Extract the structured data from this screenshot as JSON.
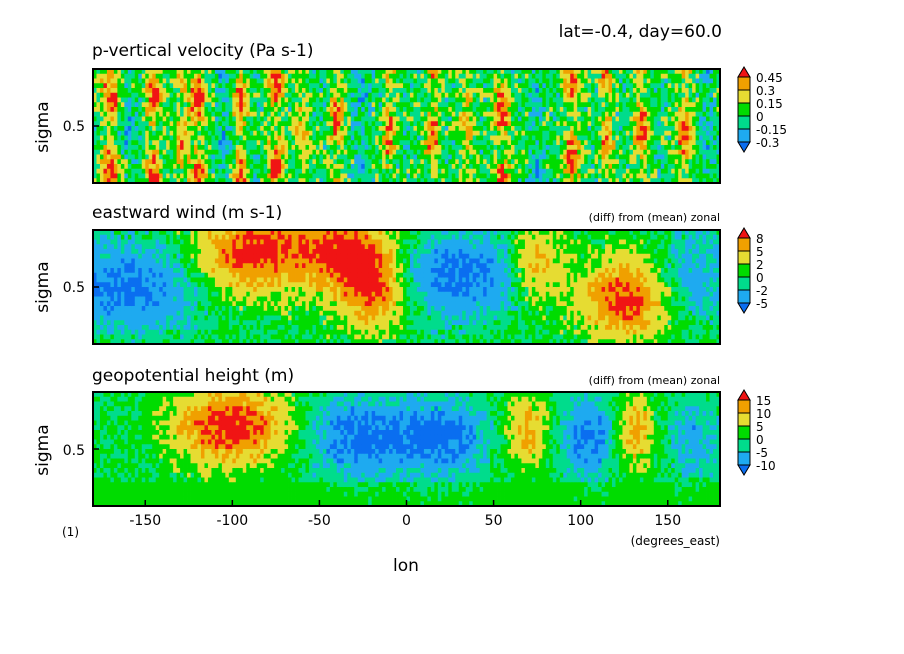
{
  "header": {
    "caption": "lat=-0.4, day=60.0",
    "figure_number": "(1)"
  },
  "x_axis": {
    "label": "lon",
    "units": "(degrees_east)",
    "ticks": [
      -150,
      -100,
      -50,
      0,
      50,
      100,
      150
    ],
    "tick_labels": [
      "-150",
      "-100",
      "-50",
      "0",
      "50",
      "100",
      "150"
    ],
    "range": [
      -180,
      180
    ]
  },
  "palette": {
    "dark_blue": "#0a6ef0",
    "light_blue": "#1eaaf0",
    "cyan_green": "#00dc8c",
    "green": "#00dc00",
    "yellow": "#e6dc32",
    "orange": "#f0a000",
    "red": "#f01414"
  },
  "chart_data": [
    {
      "type": "heatmap",
      "title": "p-vertical velocity (Pa s-1)",
      "subtitle": "",
      "xlabel": "lon",
      "ylabel": "sigma",
      "y_tick_labels": [
        "0.5"
      ],
      "y_ticks": [
        0.5
      ],
      "xlim": [
        -180,
        180
      ],
      "ylim": [
        1.0,
        0.0
      ],
      "colorbar": {
        "labels": [
          "-0.3",
          "-0.15",
          "0",
          "0.15",
          "0.3",
          "0.45"
        ],
        "levels": [
          -0.3,
          -0.15,
          0,
          0.15,
          0.3,
          0.45
        ],
        "colors": [
          "#0a6ef0",
          "#1eaaf0",
          "#00dc8c",
          "#00dc00",
          "#e6dc32",
          "#f0a000",
          "#f01414"
        ]
      },
      "pattern": "fine-scale vertical columns alternating red (ascent) and cyan/blue (descent) across all longitudes",
      "features": [
        {
          "lon": -170,
          "value": 0.5,
          "width": 6
        },
        {
          "lon": -160,
          "value": -0.2,
          "width": 5
        },
        {
          "lon": -145,
          "value": 0.5,
          "width": 5
        },
        {
          "lon": -130,
          "value": 0.4,
          "width": 4
        },
        {
          "lon": -120,
          "value": 0.5,
          "width": 5
        },
        {
          "lon": -105,
          "value": -0.2,
          "width": 4
        },
        {
          "lon": -95,
          "value": 0.5,
          "width": 4
        },
        {
          "lon": -75,
          "value": 0.5,
          "width": 5
        },
        {
          "lon": -60,
          "value": 0.4,
          "width": 4
        },
        {
          "lon": -40,
          "value": 0.5,
          "width": 4
        },
        {
          "lon": -25,
          "value": -0.2,
          "width": 4
        },
        {
          "lon": -10,
          "value": 0.45,
          "width": 4
        },
        {
          "lon": 15,
          "value": 0.5,
          "width": 4
        },
        {
          "lon": 35,
          "value": 0.4,
          "width": 4
        },
        {
          "lon": 55,
          "value": 0.5,
          "width": 5
        },
        {
          "lon": 75,
          "value": -0.2,
          "width": 4
        },
        {
          "lon": 95,
          "value": 0.5,
          "width": 5
        },
        {
          "lon": 115,
          "value": 0.45,
          "width": 4
        },
        {
          "lon": 135,
          "value": 0.5,
          "width": 5
        },
        {
          "lon": 160,
          "value": 0.5,
          "width": 5
        },
        {
          "lon": 172,
          "value": -0.2,
          "width": 4
        }
      ]
    },
    {
      "type": "heatmap",
      "title": "eastward wind (m s-1)",
      "subtitle": "(diff) from (mean) zonal",
      "xlabel": "lon",
      "ylabel": "sigma",
      "y_tick_labels": [
        "0.5"
      ],
      "y_ticks": [
        0.5
      ],
      "xlim": [
        -180,
        180
      ],
      "ylim": [
        1.0,
        0.0
      ],
      "colorbar": {
        "labels": [
          "-5",
          "-2",
          "0",
          "2",
          "5",
          "8"
        ],
        "levels": [
          -5,
          -2,
          0,
          2,
          5,
          8
        ],
        "colors": [
          "#0a6ef0",
          "#1eaaf0",
          "#00dc8c",
          "#00dc00",
          "#e6dc32",
          "#f0a000",
          "#f01414"
        ]
      },
      "pattern": "westerly (red) anomalies near -90 to -20 and 110 to 150; easterly (blue) anomalies elsewhere",
      "features": [
        {
          "lon": -160,
          "sigma": 0.5,
          "value": -6,
          "width": 40
        },
        {
          "lon": -90,
          "sigma": 0.2,
          "value": 9,
          "width": 30
        },
        {
          "lon": -20,
          "sigma": 0.5,
          "value": 9,
          "width": 20
        },
        {
          "lon": -40,
          "sigma": 0.15,
          "value": 8,
          "width": 30
        },
        {
          "lon": 30,
          "sigma": 0.4,
          "value": -6,
          "width": 40
        },
        {
          "lon": 75,
          "sigma": 0.3,
          "value": 6,
          "width": 15
        },
        {
          "lon": 125,
          "sigma": 0.6,
          "value": 9,
          "width": 25
        },
        {
          "lon": 165,
          "sigma": 0.4,
          "value": -4,
          "width": 20
        }
      ]
    },
    {
      "type": "heatmap",
      "title": "geopotential height (m)",
      "subtitle": "(diff) from (mean) zonal",
      "xlabel": "lon",
      "ylabel": "sigma",
      "y_tick_labels": [
        "0.5"
      ],
      "y_ticks": [
        0.5
      ],
      "xlim": [
        -180,
        180
      ],
      "ylim": [
        1.0,
        0.0
      ],
      "colorbar": {
        "labels": [
          "-10",
          "-5",
          "0",
          "5",
          "10",
          "15"
        ],
        "levels": [
          -10,
          -5,
          0,
          5,
          10,
          15
        ],
        "colors": [
          "#0a6ef0",
          "#1eaaf0",
          "#00dc8c",
          "#00dc00",
          "#e6dc32",
          "#f0a000",
          "#f01414"
        ]
      },
      "pattern": "positive (red) anomaly -130 to -60 in upper levels, negative (blue) 0 to 50 and 90 to 120, green near surface",
      "features": [
        {
          "lon": -100,
          "sigma": 0.3,
          "value": 18,
          "width": 35
        },
        {
          "lon": -30,
          "sigma": 0.4,
          "value": -12,
          "width": 30
        },
        {
          "lon": 20,
          "sigma": 0.4,
          "value": -12,
          "width": 30
        },
        {
          "lon": 70,
          "sigma": 0.35,
          "value": 12,
          "width": 15
        },
        {
          "lon": 105,
          "sigma": 0.4,
          "value": -12,
          "width": 20
        },
        {
          "lon": 130,
          "sigma": 0.35,
          "value": 14,
          "width": 12
        },
        {
          "lon": 165,
          "sigma": 0.4,
          "value": -8,
          "width": 15
        }
      ]
    }
  ]
}
